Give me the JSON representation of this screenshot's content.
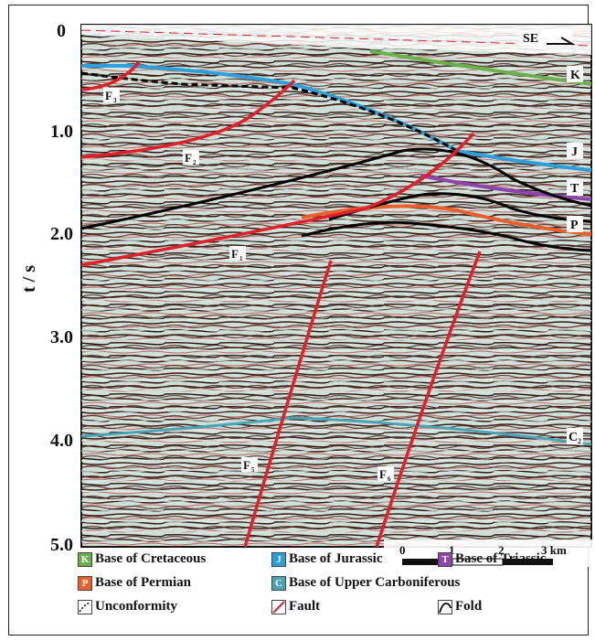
{
  "figure": {
    "y_axis_label": "t / s",
    "y_ticks": [
      "0",
      "1.0",
      "2.0",
      "3.0",
      "4.0",
      "5.0"
    ],
    "direction_label": "SE",
    "scale_bar": {
      "ticks": [
        "0",
        "1",
        "2",
        "3 km"
      ]
    }
  },
  "horizons": [
    {
      "key": "K",
      "color": "#6ab04c"
    },
    {
      "key": "J",
      "color": "#2e9fd8"
    },
    {
      "key": "T",
      "color": "#8e44ad"
    },
    {
      "key": "P",
      "color": "#e8602c"
    },
    {
      "key": "C",
      "sub": "2",
      "color": "#4ba3b3"
    }
  ],
  "faults": [
    {
      "key": "F",
      "sub": "3"
    },
    {
      "key": "F",
      "sub": "2"
    },
    {
      "key": "F",
      "sub": "1"
    },
    {
      "key": "F",
      "sub": "5"
    },
    {
      "key": "F",
      "sub": "6"
    }
  ],
  "legend": [
    {
      "sw": "K",
      "label": "Base of Cretaceous",
      "color": "#6ab04c"
    },
    {
      "sw": "J",
      "label": "Base of Jurassic",
      "color": "#2e9fd8"
    },
    {
      "sw": "T",
      "label": "Base of Triassic",
      "color": "#8e44ad"
    },
    {
      "sw": "P",
      "label": "Base of Permian",
      "color": "#e8602c"
    },
    {
      "sw": "C",
      "label": "Base of Upper Carboniferous",
      "color": "#4ba3b3"
    },
    {
      "sw": "",
      "label": "Unconformity",
      "color": "#fff"
    },
    {
      "sw": "",
      "label": "Fault",
      "color": "#fff"
    },
    {
      "sw": "",
      "label": "Fold",
      "color": "#fff"
    }
  ],
  "colors": {
    "fault": "#e0202a",
    "fold": "#000000",
    "unconformity": "#000000",
    "seismic_light": "#d9e8e0",
    "seismic_dark": "#5a2a22"
  }
}
